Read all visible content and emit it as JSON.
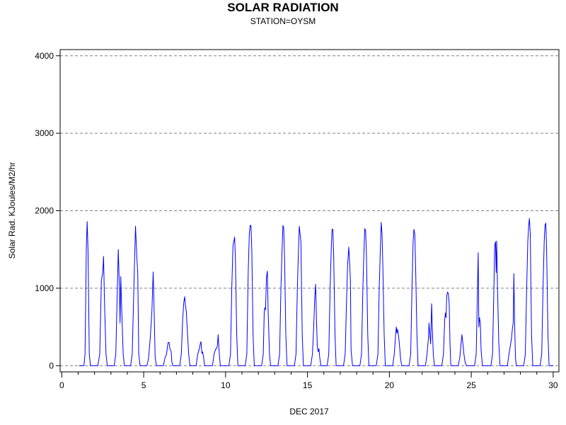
{
  "chart_data": {
    "type": "line",
    "title": "SOLAR RADIATION",
    "subtitle": "STATION=OYSM",
    "xlabel": "DEC 2017",
    "ylabel": "Solar Rad. KJoules/M2/hr",
    "xlim": [
      -0.1,
      30.35
    ],
    "ylim": [
      -80,
      4080
    ],
    "x_ticks": [
      0,
      5,
      10,
      15,
      20,
      25,
      30
    ],
    "x_minor_step": 1,
    "y_ticks": [
      0,
      1000,
      2000,
      3000,
      4000
    ],
    "grid": {
      "y": true,
      "style": "dashed"
    },
    "series_color": "#0000ff",
    "series": [
      {
        "values": [
          [
            1.05,
            0
          ],
          [
            1.35,
            0
          ],
          [
            1.42,
            150
          ],
          [
            1.5,
            1500
          ],
          [
            1.55,
            1860
          ],
          [
            1.6,
            1500
          ],
          [
            1.68,
            150
          ],
          [
            1.75,
            0
          ],
          [
            2.2,
            0
          ],
          [
            2.32,
            150
          ],
          [
            2.42,
            1100
          ],
          [
            2.5,
            1200
          ],
          [
            2.55,
            1410
          ],
          [
            2.6,
            900
          ],
          [
            2.7,
            150
          ],
          [
            2.78,
            0
          ],
          [
            3.2,
            0
          ],
          [
            3.3,
            150
          ],
          [
            3.38,
            900
          ],
          [
            3.45,
            1500
          ],
          [
            3.52,
            1000
          ],
          [
            3.56,
            550
          ],
          [
            3.6,
            1150
          ],
          [
            3.65,
            800
          ],
          [
            3.68,
            600
          ],
          [
            3.75,
            150
          ],
          [
            3.82,
            0
          ],
          [
            4.2,
            0
          ],
          [
            4.3,
            150
          ],
          [
            4.4,
            1000
          ],
          [
            4.5,
            1800
          ],
          [
            4.58,
            1400
          ],
          [
            4.64,
            1200
          ],
          [
            4.7,
            150
          ],
          [
            4.78,
            0
          ],
          [
            5.2,
            0
          ],
          [
            5.3,
            100
          ],
          [
            5.4,
            350
          ],
          [
            5.5,
            700
          ],
          [
            5.58,
            1210
          ],
          [
            5.64,
            700
          ],
          [
            5.7,
            100
          ],
          [
            5.78,
            0
          ],
          [
            6.2,
            0
          ],
          [
            6.3,
            100
          ],
          [
            6.4,
            150
          ],
          [
            6.45,
            250
          ],
          [
            6.5,
            300
          ],
          [
            6.55,
            300
          ],
          [
            6.6,
            220
          ],
          [
            6.68,
            180
          ],
          [
            6.72,
            50
          ],
          [
            6.78,
            0
          ],
          [
            7.2,
            0
          ],
          [
            7.3,
            150
          ],
          [
            7.38,
            600
          ],
          [
            7.45,
            820
          ],
          [
            7.5,
            890
          ],
          [
            7.55,
            780
          ],
          [
            7.6,
            700
          ],
          [
            7.68,
            400
          ],
          [
            7.75,
            150
          ],
          [
            7.82,
            0
          ],
          [
            8.2,
            0
          ],
          [
            8.3,
            150
          ],
          [
            8.4,
            220
          ],
          [
            8.45,
            280
          ],
          [
            8.5,
            310
          ],
          [
            8.55,
            160
          ],
          [
            8.6,
            180
          ],
          [
            8.65,
            120
          ],
          [
            8.72,
            0
          ],
          [
            9.2,
            0
          ],
          [
            9.3,
            150
          ],
          [
            9.4,
            220
          ],
          [
            9.45,
            220
          ],
          [
            9.5,
            260
          ],
          [
            9.55,
            400
          ],
          [
            9.6,
            200
          ],
          [
            9.68,
            0
          ],
          [
            10.2,
            0
          ],
          [
            10.3,
            150
          ],
          [
            10.38,
            1000
          ],
          [
            10.45,
            1550
          ],
          [
            10.5,
            1600
          ],
          [
            10.55,
            1660
          ],
          [
            10.6,
            1400
          ],
          [
            10.68,
            400
          ],
          [
            10.75,
            0
          ],
          [
            11.2,
            0
          ],
          [
            11.3,
            150
          ],
          [
            11.38,
            1200
          ],
          [
            11.45,
            1700
          ],
          [
            11.5,
            1810
          ],
          [
            11.55,
            1810
          ],
          [
            11.6,
            1500
          ],
          [
            11.68,
            400
          ],
          [
            11.75,
            0
          ],
          [
            12.2,
            0
          ],
          [
            12.3,
            150
          ],
          [
            12.36,
            700
          ],
          [
            12.4,
            750
          ],
          [
            12.44,
            720
          ],
          [
            12.5,
            1150
          ],
          [
            12.55,
            1220
          ],
          [
            12.6,
            700
          ],
          [
            12.68,
            150
          ],
          [
            12.75,
            0
          ],
          [
            13.2,
            0
          ],
          [
            13.3,
            150
          ],
          [
            13.38,
            1000
          ],
          [
            13.45,
            1500
          ],
          [
            13.5,
            1810
          ],
          [
            13.55,
            1780
          ],
          [
            13.6,
            1400
          ],
          [
            13.68,
            400
          ],
          [
            13.75,
            0
          ],
          [
            14.2,
            0
          ],
          [
            14.3,
            150
          ],
          [
            14.38,
            1000
          ],
          [
            14.45,
            1500
          ],
          [
            14.5,
            1800
          ],
          [
            14.55,
            1700
          ],
          [
            14.6,
            1600
          ],
          [
            14.68,
            400
          ],
          [
            14.75,
            0
          ],
          [
            15.2,
            0
          ],
          [
            15.3,
            150
          ],
          [
            15.38,
            500
          ],
          [
            15.45,
            900
          ],
          [
            15.5,
            1050
          ],
          [
            15.55,
            600
          ],
          [
            15.6,
            250
          ],
          [
            15.65,
            180
          ],
          [
            15.7,
            220
          ],
          [
            15.75,
            100
          ],
          [
            15.82,
            0
          ],
          [
            16.2,
            0
          ],
          [
            16.3,
            150
          ],
          [
            16.38,
            1000
          ],
          [
            16.45,
            1500
          ],
          [
            16.5,
            1760
          ],
          [
            16.55,
            1760
          ],
          [
            16.6,
            1400
          ],
          [
            16.68,
            400
          ],
          [
            16.75,
            0
          ],
          [
            17.2,
            0
          ],
          [
            17.3,
            150
          ],
          [
            17.38,
            800
          ],
          [
            17.45,
            1300
          ],
          [
            17.52,
            1530
          ],
          [
            17.58,
            1300
          ],
          [
            17.62,
            1100
          ],
          [
            17.66,
            200
          ],
          [
            17.75,
            0
          ],
          [
            18.2,
            0
          ],
          [
            18.3,
            150
          ],
          [
            18.38,
            1000
          ],
          [
            18.45,
            1500
          ],
          [
            18.5,
            1770
          ],
          [
            18.55,
            1740
          ],
          [
            18.6,
            1400
          ],
          [
            18.68,
            400
          ],
          [
            18.75,
            0
          ],
          [
            19.2,
            0
          ],
          [
            19.3,
            150
          ],
          [
            19.38,
            1000
          ],
          [
            19.45,
            1500
          ],
          [
            19.5,
            1850
          ],
          [
            19.55,
            1700
          ],
          [
            19.6,
            1300
          ],
          [
            19.68,
            400
          ],
          [
            19.75,
            0
          ],
          [
            20.2,
            0
          ],
          [
            20.3,
            150
          ],
          [
            20.38,
            400
          ],
          [
            20.42,
            500
          ],
          [
            20.46,
            420
          ],
          [
            20.5,
            470
          ],
          [
            20.55,
            400
          ],
          [
            20.6,
            300
          ],
          [
            20.68,
            100
          ],
          [
            20.75,
            0
          ],
          [
            21.2,
            0
          ],
          [
            21.3,
            150
          ],
          [
            21.38,
            1000
          ],
          [
            21.45,
            1600
          ],
          [
            21.5,
            1760
          ],
          [
            21.55,
            1700
          ],
          [
            21.6,
            1300
          ],
          [
            21.68,
            400
          ],
          [
            21.75,
            0
          ],
          [
            22.2,
            0
          ],
          [
            22.3,
            150
          ],
          [
            22.38,
            350
          ],
          [
            22.42,
            550
          ],
          [
            22.47,
            400
          ],
          [
            22.52,
            280
          ],
          [
            22.58,
            800
          ],
          [
            22.62,
            500
          ],
          [
            22.68,
            150
          ],
          [
            22.75,
            0
          ],
          [
            23.2,
            0
          ],
          [
            23.3,
            150
          ],
          [
            23.38,
            600
          ],
          [
            23.42,
            680
          ],
          [
            23.46,
            620
          ],
          [
            23.5,
            900
          ],
          [
            23.55,
            950
          ],
          [
            23.6,
            930
          ],
          [
            23.65,
            800
          ],
          [
            23.7,
            300
          ],
          [
            23.75,
            0
          ],
          [
            24.2,
            0
          ],
          [
            24.3,
            100
          ],
          [
            24.38,
            300
          ],
          [
            24.43,
            400
          ],
          [
            24.48,
            300
          ],
          [
            24.55,
            150
          ],
          [
            24.62,
            50
          ],
          [
            24.7,
            0
          ],
          [
            25.2,
            0
          ],
          [
            25.3,
            150
          ],
          [
            25.38,
            1000
          ],
          [
            25.42,
            1460
          ],
          [
            25.46,
            500
          ],
          [
            25.5,
            620
          ],
          [
            25.55,
            550
          ],
          [
            25.6,
            200
          ],
          [
            25.68,
            0
          ],
          [
            26.2,
            0
          ],
          [
            26.3,
            150
          ],
          [
            26.38,
            1000
          ],
          [
            26.43,
            1550
          ],
          [
            26.48,
            1600
          ],
          [
            26.52,
            1200
          ],
          [
            26.55,
            1610
          ],
          [
            26.6,
            1000
          ],
          [
            26.68,
            300
          ],
          [
            26.75,
            0
          ],
          [
            27.2,
            0
          ],
          [
            27.3,
            150
          ],
          [
            27.38,
            250
          ],
          [
            27.45,
            350
          ],
          [
            27.52,
            500
          ],
          [
            27.56,
            550
          ],
          [
            27.6,
            1190
          ],
          [
            27.65,
            500
          ],
          [
            27.7,
            100
          ],
          [
            27.75,
            0
          ],
          [
            28.2,
            0
          ],
          [
            28.3,
            150
          ],
          [
            28.38,
            1000
          ],
          [
            28.45,
            1600
          ],
          [
            28.5,
            1800
          ],
          [
            28.55,
            1900
          ],
          [
            28.6,
            1700
          ],
          [
            28.68,
            400
          ],
          [
            28.75,
            0
          ],
          [
            29.2,
            0
          ],
          [
            29.3,
            150
          ],
          [
            29.38,
            1000
          ],
          [
            29.45,
            1600
          ],
          [
            29.5,
            1810
          ],
          [
            29.55,
            1840
          ],
          [
            29.6,
            1500
          ],
          [
            29.68,
            400
          ],
          [
            29.75,
            0
          ],
          [
            30.0,
            0
          ]
        ]
      }
    ]
  }
}
